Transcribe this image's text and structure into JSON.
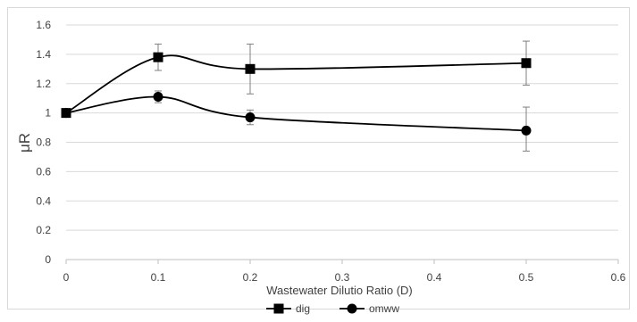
{
  "chart_data": {
    "type": "line",
    "title": "",
    "xlabel": "Wastewater Dilutio Ratio (D)",
    "ylabel": "μR",
    "xlim": [
      0,
      0.6
    ],
    "ylim": [
      0,
      1.6
    ],
    "x_ticks": [
      0,
      0.1,
      0.2,
      0.3,
      0.4,
      0.5,
      0.6
    ],
    "x_tick_labels": [
      "0",
      "0.1",
      "0.2",
      "0.3",
      "0.4",
      "0.5",
      "0.6"
    ],
    "y_ticks": [
      0,
      0.2,
      0.4,
      0.6,
      0.8,
      1.0,
      1.2,
      1.4,
      1.6
    ],
    "y_tick_labels": [
      "0",
      "0.2",
      "0.4",
      "0.6",
      "0.8",
      "1",
      "1.2",
      "1.4",
      "1.6"
    ],
    "grid": "horizontal",
    "legend_position": "bottom",
    "smooth_lines": true,
    "series": [
      {
        "name": "dig",
        "marker": "square",
        "color": "#000000",
        "x": [
          0,
          0.1,
          0.2,
          0.5
        ],
        "y": [
          1.0,
          1.38,
          1.3,
          1.34
        ],
        "err_low": [
          0,
          0.09,
          0.17,
          0.15
        ],
        "err_high": [
          0,
          0.09,
          0.17,
          0.15
        ]
      },
      {
        "name": "omww",
        "marker": "circle",
        "color": "#000000",
        "x": [
          0,
          0.1,
          0.2,
          0.5
        ],
        "y": [
          1.0,
          1.11,
          0.97,
          0.88
        ],
        "err_low": [
          0,
          0.04,
          0.05,
          0.14
        ],
        "err_high": [
          0,
          0.04,
          0.05,
          0.16
        ]
      }
    ]
  }
}
